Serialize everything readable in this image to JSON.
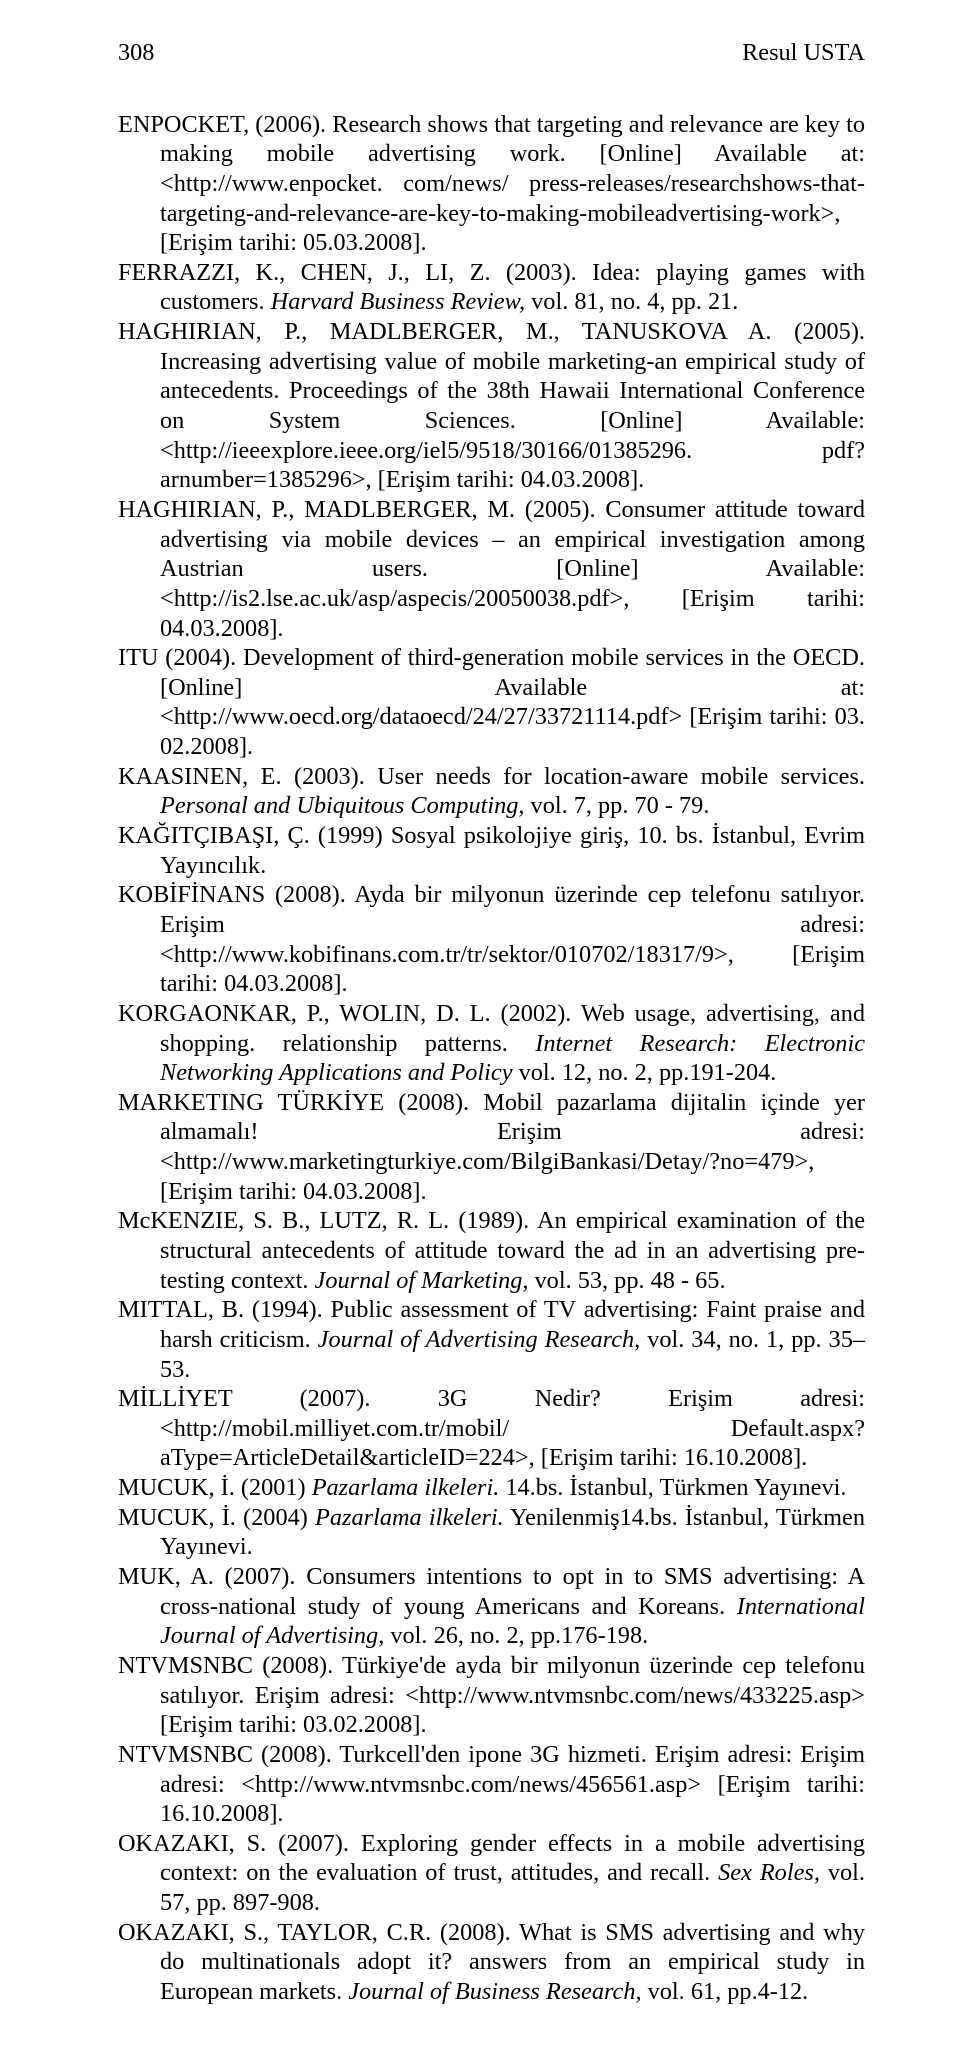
{
  "page": {
    "number": "308",
    "author": "Resul USTA",
    "font_family": "Times New Roman",
    "font_size_pt": 24.3,
    "text_color": "#000000",
    "background_color": "#ffffff"
  },
  "refs": [
    {
      "html": "ENPOCKET, (2006). Research shows that targeting and relevance are key to making mobile advertising work. [Online] Available at: &lt;http://www.enpocket. com/news/ press-releases/researchshows-that-targeting-and-relevance-are-key-to-making-mobileadvertising-work&gt;, [Erişim tarihi: 05.03.2008]."
    },
    {
      "html": "FERRAZZI, K., CHEN, J., LI, Z. (2003). Idea: playing games with customers. <span class=\"italic\">Harvard Business Review,</span> vol. 81, no. 4, pp. 21."
    },
    {
      "html": "HAGHIRIAN, P., MADLBERGER, M., TANUSKOVA A. (2005). Increasing advertising value of mobile marketing-an empirical study of antecedents. Proceedings of the 38th Hawaii International Conference on System Sciences. [Online] Available: &lt;http://ieeexplore.ieee.org/iel5/9518/30166/01385296. pdf?arnumber=1385296&gt;, [Erişim tarihi: 04.03.2008]."
    },
    {
      "html": "HAGHIRIAN, P., MADLBERGER, M. (2005). Consumer attitude toward advertising via mobile devices – an empirical investigation among Austrian users. [Online] Available: &lt;http://is2.lse.ac.uk/asp/aspecis/20050038.pdf&gt;, [Erişim tarihi: 04.03.2008]."
    },
    {
      "html": "ITU (2004). Development of third-generation mobile services in the OECD. [Online] Available at: &lt;http://www.oecd.org/dataoecd/24/27/33721114.pdf&gt; [Erişim tarihi: 03. 02.2008]."
    },
    {
      "html": "KAASINEN, E. (2003). User needs for location-aware mobile services. <span class=\"italic\">Personal and Ubiquitous Computing,</span> vol. 7, pp. 70 - 79."
    },
    {
      "html": "KAĞITÇIBAŞI, Ç. (1999) Sosyal psikolojiye giriş, 10. bs. İstanbul, Evrim Yayıncılık."
    },
    {
      "html": "KOBİFİNANS (2008). Ayda bir milyonun üzerinde cep telefonu satılıyor. Erişim adresi: &lt;http://www.kobifinans.com.tr/tr/sektor/010702/18317/9&gt;, [Erişim tarihi: 04.03.2008]."
    },
    {
      "html": "KORGAONKAR, P., WOLIN, D. L. (2002). Web usage, advertising, and shopping. relationship patterns. <span class=\"italic\">Internet Research: Electronic Networking Applications and Policy</span> vol. 12, no. 2, pp.191-204."
    },
    {
      "html": "MARKETING TÜRKİYE (2008). Mobil pazarlama dijitalin içinde yer almamalı! Erişim adresi: &lt;http://www.marketingturkiye.com/BilgiBankasi/Detay/?no=479&gt;, [Erişim tarihi: 04.03.2008]."
    },
    {
      "html": "McKENZIE, S. B., LUTZ, R. L. (1989). An empirical examination of the structural antecedents of attitude toward the ad in an advertising pre-testing context. <span class=\"italic\">Journal of Marketing,</span> vol. 53, pp. 48 - 65."
    },
    {
      "html": "MITTAL, B. (1994). Public assessment of TV advertising: Faint praise and harsh criticism. <span class=\"italic\">Journal of Advertising Research,</span> vol. 34, no. 1, pp. 35–53."
    },
    {
      "html": "MİLLİYET (2007). 3G Nedir? Erişim adresi: &lt;http://mobil.milliyet.com.tr/mobil/ Default.aspx?aType=ArticleDetail&amp;articleID=224&gt;, [Erişim tarihi: 16.10.2008]."
    },
    {
      "html": "MUCUK, İ. (2001) <span class=\"italic\">Pazarlama ilkeleri.</span> 14.bs. İstanbul, Türkmen Yayınevi."
    },
    {
      "html": "MUCUK, İ. (2004) <span class=\"italic\">Pazarlama ilkeleri.</span> Yenilenmiş14.bs. İstanbul, Türkmen Yayınevi."
    },
    {
      "html": "MUK, A. (2007). Consumers intentions to opt in to SMS advertising: A cross-national study of young Americans and Koreans. <span class=\"italic\">International Journal of Advertising,</span> vol. 26, no. 2, pp.176-198."
    },
    {
      "html": "NTVMSNBC (2008). Türkiye'de ayda bir milyonun üzerinde cep telefonu satılıyor. Erişim adresi: &lt;http://www.ntvmsnbc.com/news/433225.asp&gt; [Erişim tarihi: 03.02.2008]."
    },
    {
      "html": "NTVMSNBC (2008). Turkcell'den ipone 3G hizmeti. Erişim adresi: Erişim adresi: &lt;http://www.ntvmsnbc.com/news/456561.asp&gt; [Erişim tarihi: 16.10.2008]."
    },
    {
      "html": "OKAZAKI, S. (2007). Exploring gender effects in a mobile advertising context: on the evaluation of trust, attitudes, and recall. <span class=\"italic\">Sex Roles,</span> vol. 57, pp. 897-908."
    },
    {
      "html": "OKAZAKI, S., TAYLOR, C.R. (2008). What is SMS advertising and why do multinationals adopt it? answers from an empirical study in European markets. <span class=\"italic\">Journal of Business Research,</span> vol. 61, pp.4-12."
    }
  ]
}
